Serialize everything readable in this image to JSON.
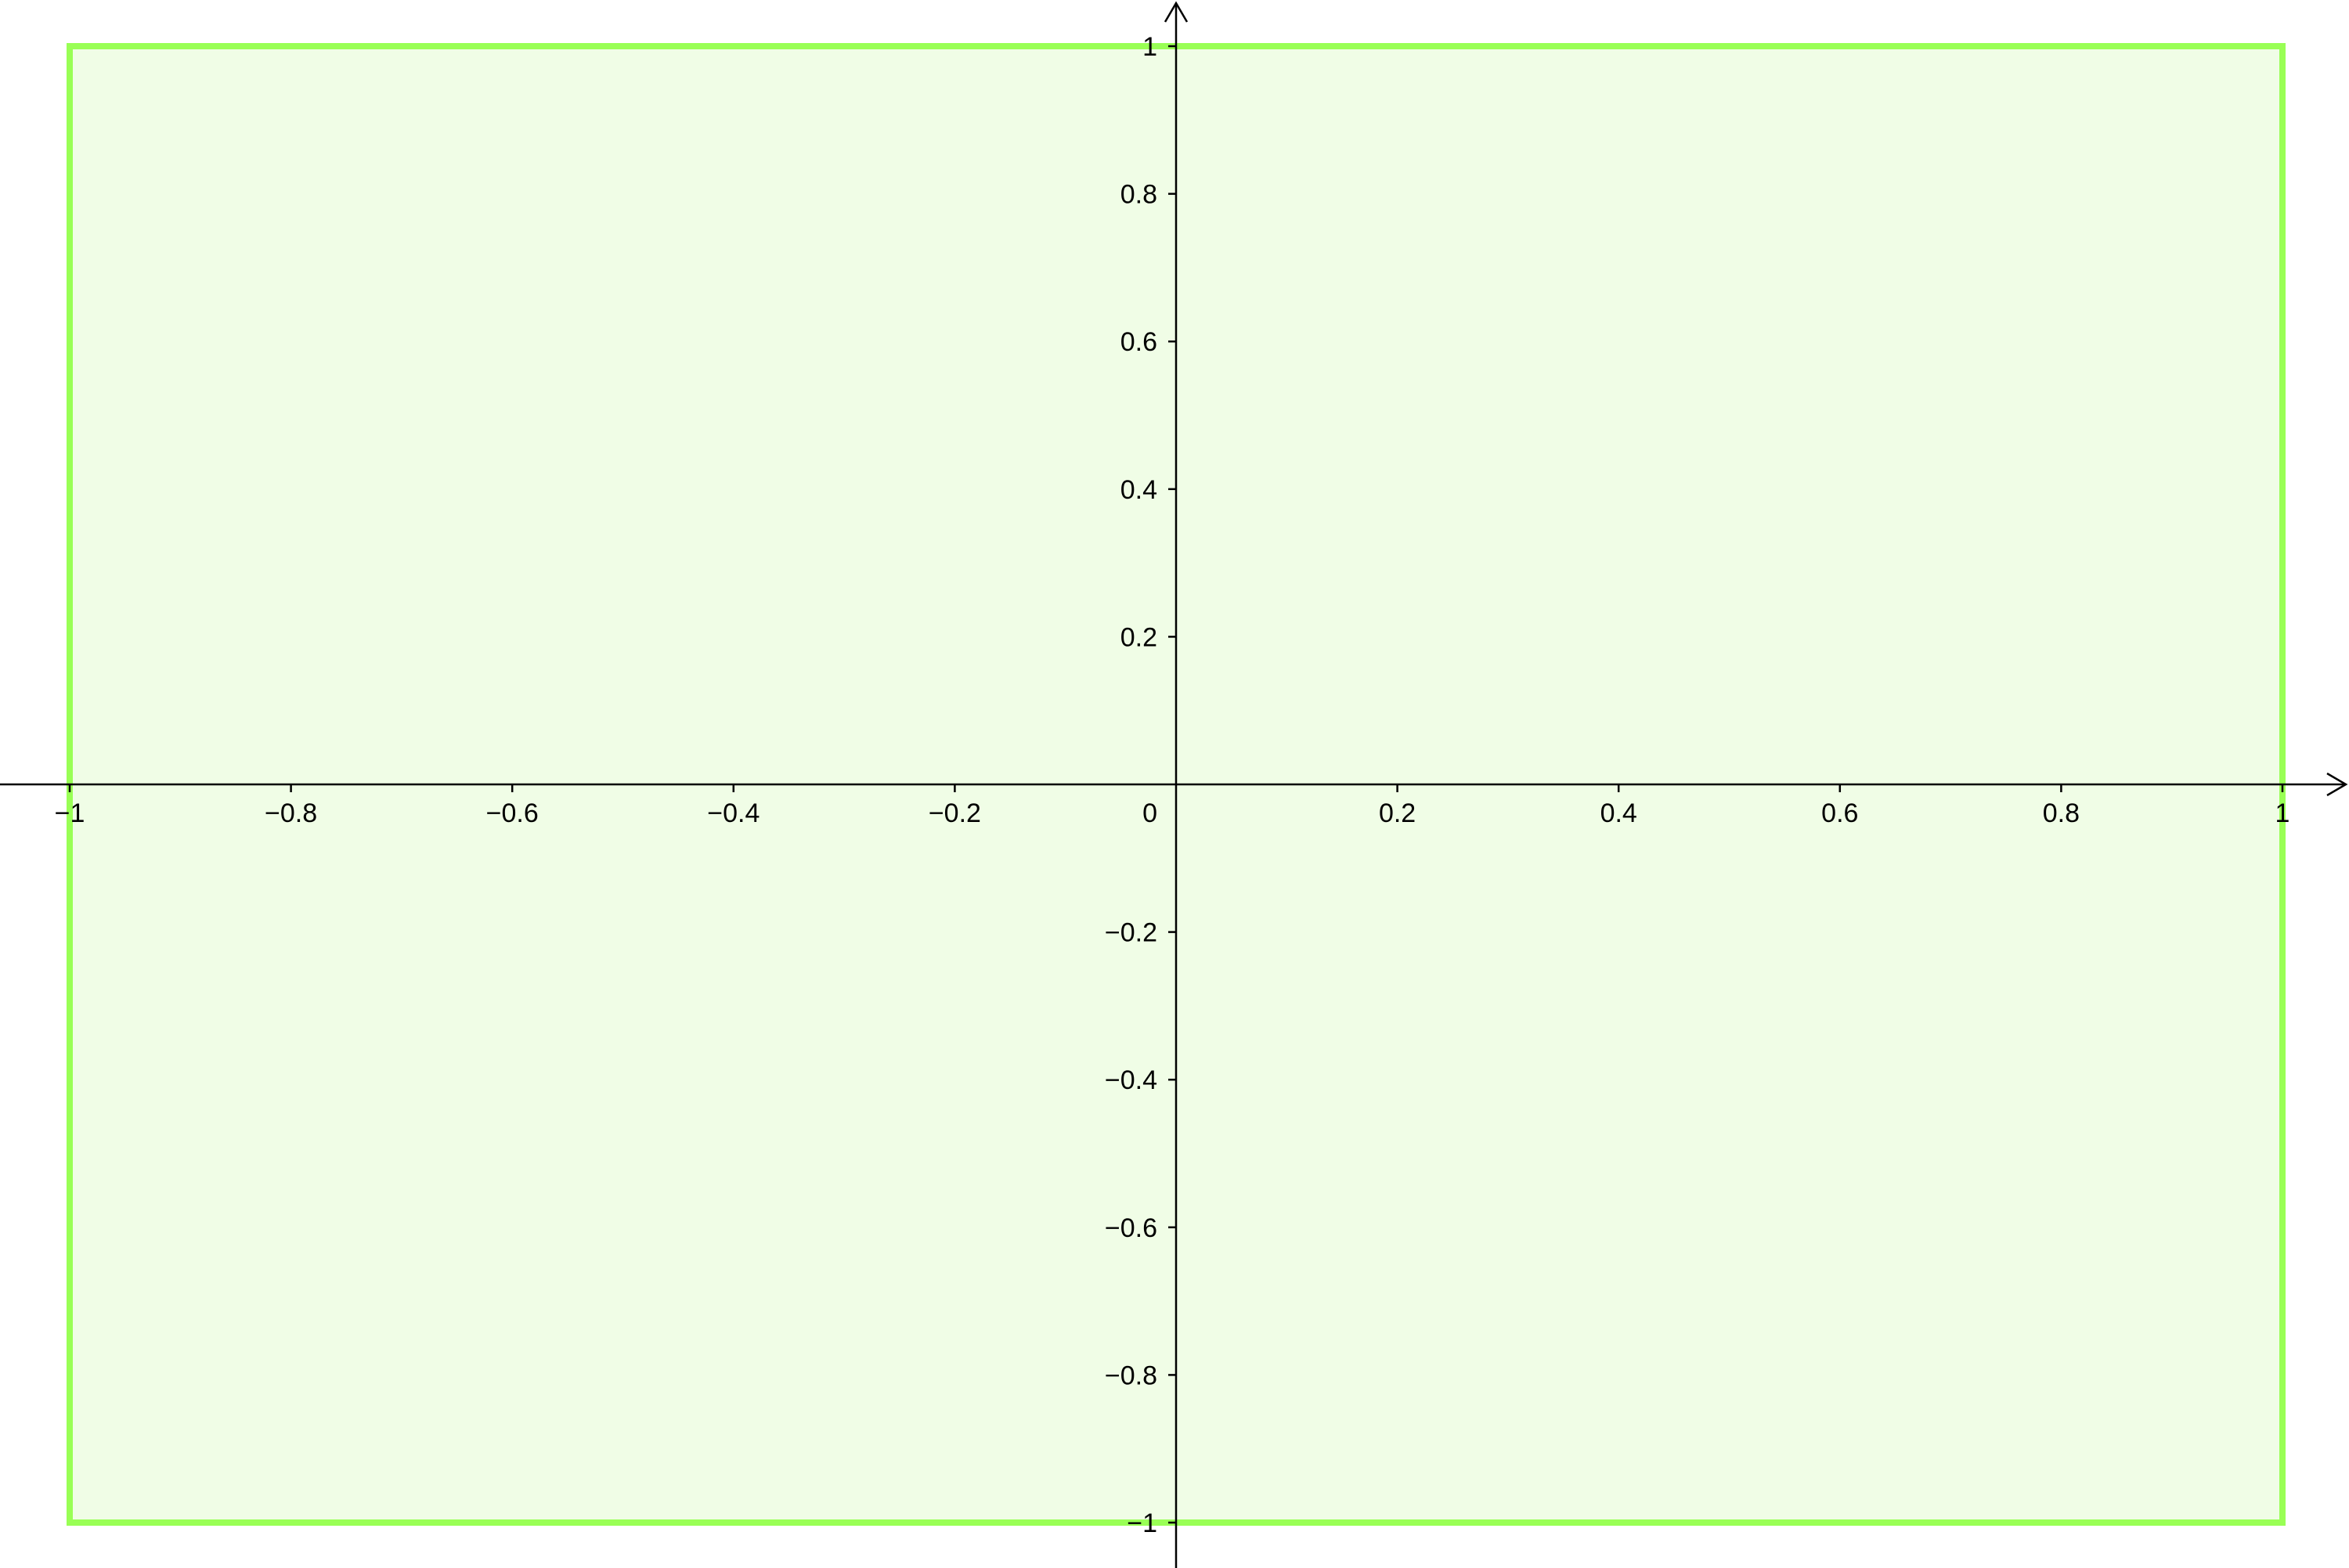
{
  "graph": {
    "x_axis": {
      "min": -1.06,
      "max": 1.06,
      "ticks": [
        -1,
        -0.8,
        -0.6,
        -0.4,
        -0.2,
        0.2,
        0.4,
        0.6,
        0.8,
        1
      ],
      "labels": [
        "−1",
        "−0.8",
        "−0.6",
        "−0.4",
        "−0.2",
        "0.2",
        "0.4",
        "0.6",
        "0.8",
        "1"
      ]
    },
    "y_axis": {
      "min": -1.06,
      "max": 1.06,
      "ticks": [
        -1,
        -0.8,
        -0.6,
        -0.4,
        -0.2,
        0.2,
        0.4,
        0.6,
        0.8,
        1
      ],
      "labels": [
        "−1",
        "−0.8",
        "−0.6",
        "−0.4",
        "−0.2",
        "0.2",
        "0.4",
        "0.6",
        "0.8",
        "1"
      ]
    },
    "origin_label": "0",
    "rectangle": {
      "x_min": -1,
      "x_max": 1,
      "y_min": -1,
      "y_max": 1,
      "stroke_color": "#99ff55",
      "fill_color": "#f0fde6"
    },
    "axis_color": "#000000"
  }
}
